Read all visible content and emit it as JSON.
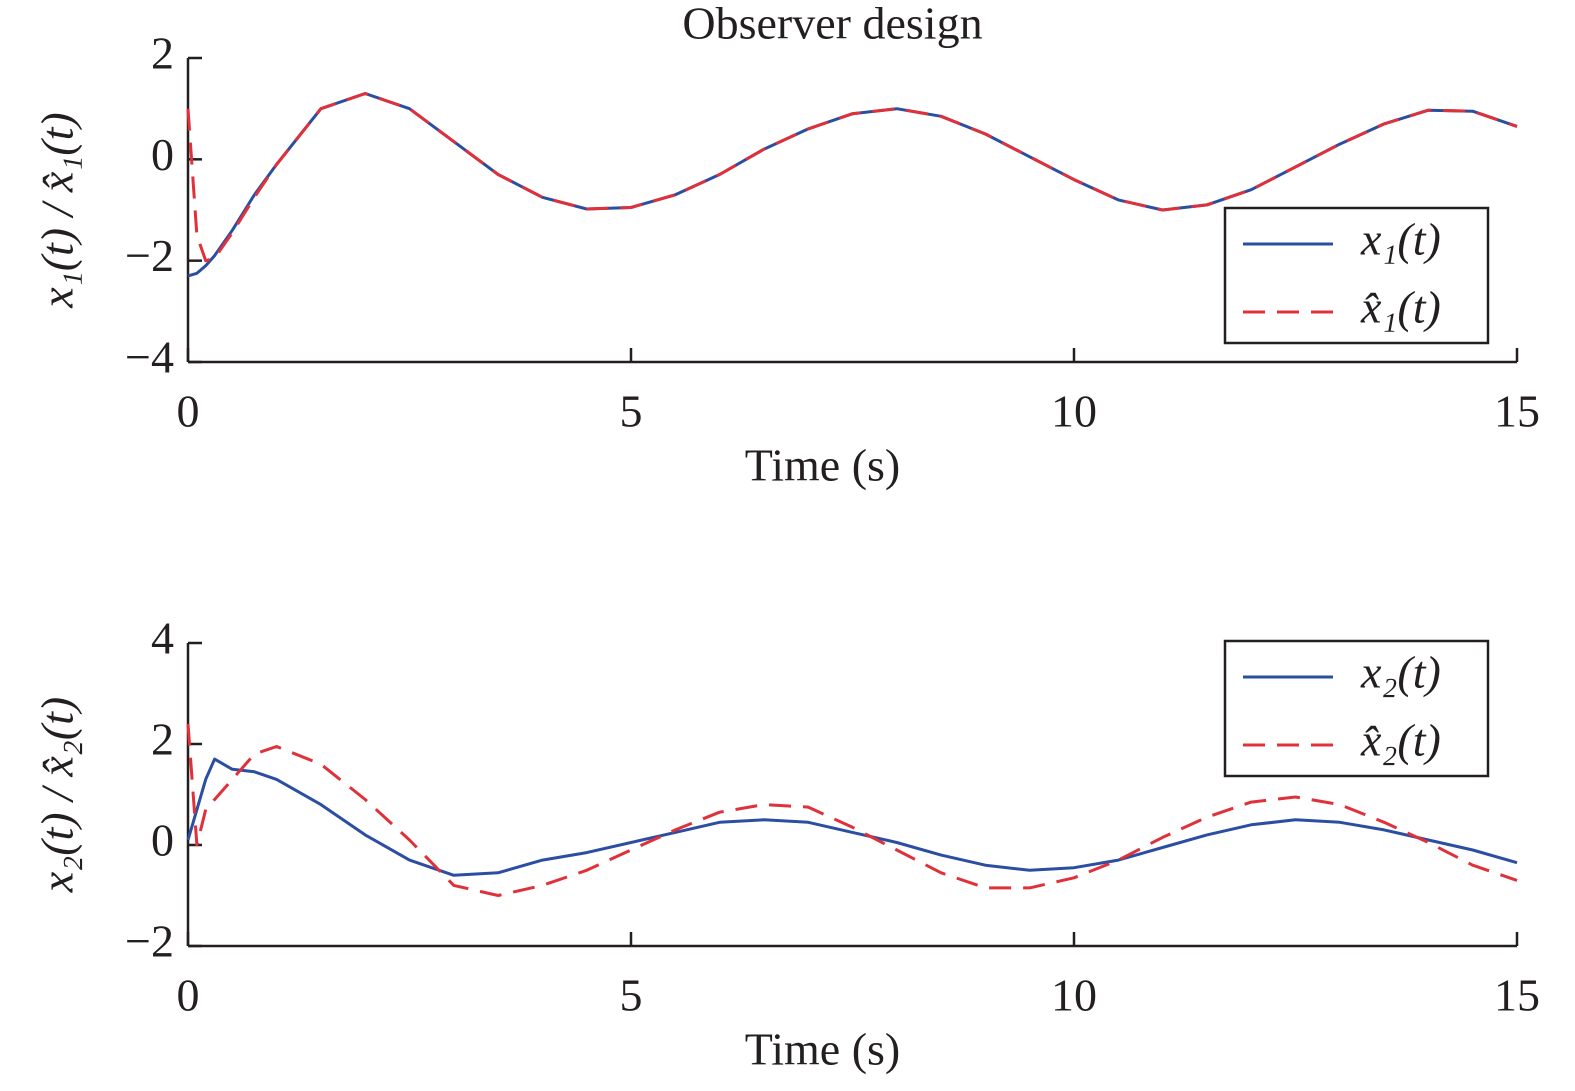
{
  "chart_data": [
    {
      "type": "line",
      "title": "Observer design",
      "xlabel": "Time (s)",
      "ylabel": "x₁(t) / x̂₁(t)",
      "x": [
        0,
        0.1,
        0.2,
        0.3,
        0.5,
        0.75,
        1,
        1.5,
        2,
        2.5,
        3,
        3.5,
        4,
        4.5,
        5,
        5.5,
        6,
        6.5,
        7,
        7.5,
        8,
        8.5,
        9,
        9.5,
        10,
        10.5,
        11,
        11.5,
        12,
        12.5,
        13,
        13.5,
        14,
        14.5,
        15
      ],
      "series": [
        {
          "name": "x₁(t)",
          "color": "#2b4ea2",
          "style": "solid",
          "values": [
            -2.3,
            -2.25,
            -2.1,
            -1.9,
            -1.4,
            -0.7,
            -0.1,
            1.0,
            1.3,
            1.0,
            0.35,
            -0.3,
            -0.75,
            -0.98,
            -0.95,
            -0.7,
            -0.3,
            0.2,
            0.6,
            0.9,
            1.0,
            0.85,
            0.5,
            0.05,
            -0.4,
            -0.8,
            -1.0,
            -0.9,
            -0.6,
            -0.15,
            0.3,
            0.7,
            0.97,
            0.95,
            0.65
          ]
        },
        {
          "name": "x̂₁(t)",
          "color": "#e0303a",
          "style": "dashed",
          "values": [
            1.0,
            -1.5,
            -2.0,
            -1.95,
            -1.45,
            -0.75,
            -0.1,
            1.0,
            1.3,
            1.0,
            0.35,
            -0.3,
            -0.75,
            -0.98,
            -0.95,
            -0.7,
            -0.3,
            0.2,
            0.6,
            0.9,
            1.0,
            0.85,
            0.5,
            0.05,
            -0.4,
            -0.8,
            -1.0,
            -0.9,
            -0.6,
            -0.15,
            0.3,
            0.7,
            0.97,
            0.95,
            0.65
          ]
        }
      ],
      "xlim": [
        0,
        15
      ],
      "xticks": [
        0,
        5,
        10,
        15
      ],
      "ylim": [
        -4,
        2
      ],
      "yticks": [
        {
          "value": -4,
          "label": "−4"
        },
        {
          "value": -2,
          "label": "−2"
        },
        0,
        2
      ],
      "legend": "lower right"
    },
    {
      "type": "line",
      "xlabel": "Time (s)",
      "ylabel": "x₂(t) / x̂₂(t)",
      "x": [
        0,
        0.1,
        0.2,
        0.3,
        0.5,
        0.75,
        1,
        1.5,
        2,
        2.5,
        3,
        3.5,
        4,
        4.5,
        5,
        5.5,
        6,
        6.5,
        7,
        7.5,
        8,
        8.5,
        9,
        9.5,
        10,
        10.5,
        11,
        11.5,
        12,
        12.5,
        13,
        13.5,
        14,
        14.5,
        15
      ],
      "series": [
        {
          "name": "x₂(t)",
          "color": "#2b4ea2",
          "style": "solid",
          "values": [
            0.1,
            0.7,
            1.3,
            1.7,
            1.5,
            1.45,
            1.3,
            0.8,
            0.2,
            -0.3,
            -0.6,
            -0.55,
            -0.3,
            -0.15,
            0.05,
            0.25,
            0.45,
            0.5,
            0.45,
            0.25,
            0.05,
            -0.2,
            -0.4,
            -0.5,
            -0.45,
            -0.3,
            -0.05,
            0.2,
            0.4,
            0.5,
            0.45,
            0.3,
            0.1,
            -0.1,
            -0.35
          ]
        },
        {
          "name": "x̂₂(t)",
          "color": "#e0303a",
          "style": "dashed",
          "values": [
            2.4,
            0.0,
            0.7,
            0.9,
            1.3,
            1.8,
            1.95,
            1.6,
            0.9,
            0.1,
            -0.8,
            -1.0,
            -0.8,
            -0.5,
            -0.1,
            0.3,
            0.65,
            0.8,
            0.75,
            0.35,
            -0.1,
            -0.55,
            -0.85,
            -0.85,
            -0.65,
            -0.3,
            0.15,
            0.55,
            0.85,
            0.95,
            0.8,
            0.45,
            0.05,
            -0.4,
            -0.7
          ]
        }
      ],
      "xlim": [
        0,
        15
      ],
      "xticks": [
        0,
        5,
        10,
        15
      ],
      "ylim": [
        -2,
        4
      ],
      "yticks": [
        {
          "value": -2,
          "label": "−2"
        },
        0,
        2,
        4
      ],
      "legend": "upper right"
    }
  ]
}
